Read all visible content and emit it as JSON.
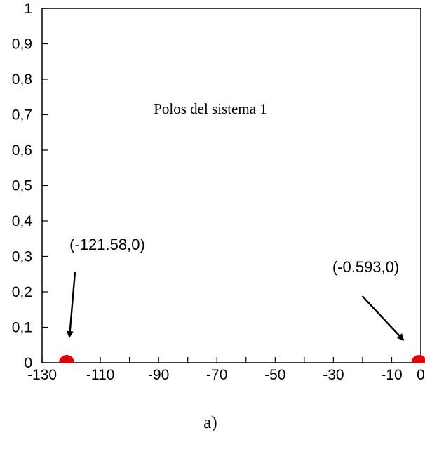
{
  "chart_data": {
    "type": "scatter",
    "title": "Polos del sistema 1",
    "caption": "a)",
    "xlabel": "",
    "ylabel": "",
    "xlim": [
      -130,
      0
    ],
    "ylim": [
      0,
      1
    ],
    "x_ticks": [
      -130,
      -120,
      -110,
      -100,
      -90,
      -80,
      -70,
      -60,
      -50,
      -40,
      -30,
      -20,
      -10,
      0
    ],
    "x_tick_labels": [
      "-130",
      "-110",
      "-90",
      "-70",
      "-50",
      "-30",
      "-10",
      "0"
    ],
    "x_tick_label_values": [
      -130,
      -110,
      -90,
      -70,
      -50,
      -30,
      -10,
      0
    ],
    "y_ticks": [
      0,
      0.1,
      0.2,
      0.3,
      0.4,
      0.5,
      0.6,
      0.7,
      0.8,
      0.9,
      1
    ],
    "y_tick_labels": [
      "0",
      "0,1",
      "0,2",
      "0,3",
      "0,4",
      "0,5",
      "0,6",
      "0,7",
      "0,8",
      "0,9",
      "1"
    ],
    "grid": false,
    "marker_color": "#e8000b",
    "points": [
      {
        "x": -121.58,
        "y": 0,
        "label": "(-121.58,0)"
      },
      {
        "x": -0.593,
        "y": 0,
        "label": "(-0.593,0)"
      }
    ]
  }
}
